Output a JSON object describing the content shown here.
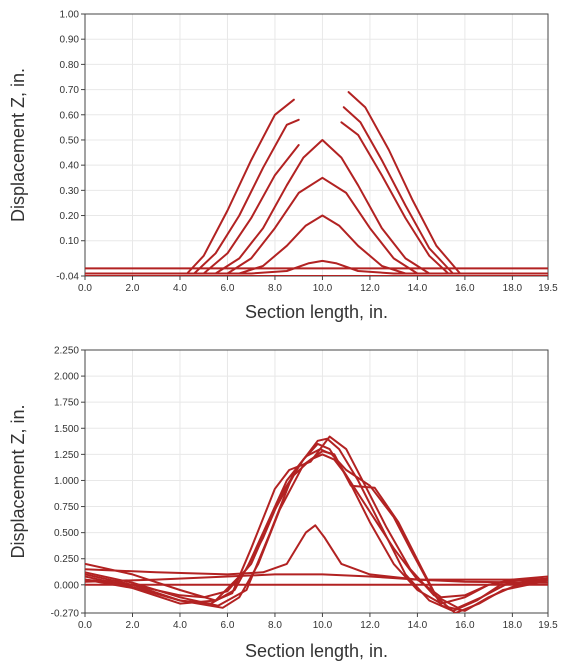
{
  "colors": {
    "series": "#b22222",
    "axis": "#444444",
    "grid": "#e8e8e8",
    "text": "#333333"
  },
  "chart_data": [
    {
      "type": "line",
      "xlabel": "Section length, in.",
      "ylabel": "Displacement Z, in.",
      "xlim": [
        0,
        19.5
      ],
      "ylim": [
        -0.04,
        1.0
      ],
      "xticks": [
        "0.0",
        "2.0",
        "4.0",
        "6.0",
        "8.0",
        "10.0",
        "12.0",
        "14.0",
        "16.0",
        "18.0",
        "19.5"
      ],
      "yticks": [
        "-0.04",
        "0.10",
        "0.20",
        "0.30",
        "0.40",
        "0.50",
        "0.60",
        "0.70",
        "0.80",
        "0.90",
        "1.00"
      ],
      "ytick_values": [
        -0.04,
        0.1,
        0.2,
        0.3,
        0.4,
        0.5,
        0.6,
        0.7,
        0.8,
        0.9,
        1.0
      ],
      "grid": true,
      "series": [
        {
          "x": [
            0,
            19.5
          ],
          "y": [
            -0.04,
            -0.04
          ]
        },
        {
          "x": [
            0,
            19.5
          ],
          "y": [
            -0.01,
            -0.01
          ]
        },
        {
          "x": [
            0,
            7,
            8.5,
            9.4,
            10,
            10.6,
            11.5,
            13,
            19.5
          ],
          "y": [
            -0.03,
            -0.03,
            -0.02,
            0.01,
            0.02,
            0.01,
            -0.02,
            -0.03,
            -0.03
          ]
        },
        {
          "x": [
            0,
            6.5,
            7.5,
            8.5,
            9.3,
            10,
            10.7,
            11.5,
            12.5,
            13.5,
            19.5
          ],
          "y": [
            -0.03,
            -0.03,
            0,
            0.08,
            0.16,
            0.2,
            0.16,
            0.08,
            0,
            -0.03,
            -0.03
          ]
        },
        {
          "x": [
            0,
            6,
            7,
            8,
            9,
            10,
            11,
            12,
            13,
            14,
            19.5
          ],
          "y": [
            -0.03,
            -0.03,
            0.03,
            0.15,
            0.29,
            0.35,
            0.29,
            0.15,
            0.03,
            -0.03,
            -0.03
          ]
        },
        {
          "x": [
            0,
            5.5,
            6.5,
            7.5,
            8.5,
            9.2,
            10,
            10.8,
            11.5,
            12.5,
            13.5,
            14.5,
            19.5
          ],
          "y": [
            -0.03,
            -0.03,
            0.03,
            0.15,
            0.32,
            0.43,
            0.5,
            0.43,
            0.32,
            0.15,
            0.03,
            -0.03,
            -0.03
          ]
        },
        {
          "x": [
            0,
            5,
            6,
            7,
            8,
            9.0
          ],
          "y": [
            -0.03,
            -0.03,
            0.05,
            0.19,
            0.36,
            0.48
          ]
        },
        {
          "x": [
            0,
            4.6,
            5.5,
            6.5,
            7.5,
            8.5,
            9.0
          ],
          "y": [
            -0.03,
            -0.03,
            0.05,
            0.2,
            0.39,
            0.56,
            0.58
          ]
        },
        {
          "x": [
            0,
            4.3,
            5,
            6,
            7,
            8,
            8.8
          ],
          "y": [
            -0.03,
            -0.03,
            0.04,
            0.22,
            0.42,
            0.6,
            0.66
          ]
        },
        {
          "x": [
            10.8,
            11.5,
            12.5,
            13.5,
            14.5,
            15.3,
            19.5
          ],
          "y": [
            0.57,
            0.52,
            0.36,
            0.19,
            0.04,
            -0.03,
            -0.03
          ]
        },
        {
          "x": [
            10.9,
            11.6,
            12.5,
            13.5,
            14.5,
            15.5,
            19.5
          ],
          "y": [
            0.63,
            0.57,
            0.42,
            0.24,
            0.07,
            -0.03,
            -0.03
          ]
        },
        {
          "x": [
            11.1,
            11.8,
            12.8,
            13.8,
            14.8,
            15.8,
            19.5
          ],
          "y": [
            0.69,
            0.63,
            0.46,
            0.26,
            0.08,
            -0.03,
            -0.03
          ]
        }
      ]
    },
    {
      "type": "line",
      "xlabel": "Section length, in.",
      "ylabel": "Displacement Z, in.",
      "xlim": [
        0,
        19.5
      ],
      "ylim": [
        -0.27,
        2.25
      ],
      "xticks": [
        "0.0",
        "2.0",
        "4.0",
        "6.0",
        "8.0",
        "10.0",
        "12.0",
        "14.0",
        "16.0",
        "18.0",
        "19.5"
      ],
      "yticks": [
        "-0.270",
        "0.000",
        "0.250",
        "0.500",
        "0.750",
        "1.000",
        "1.250",
        "1.500",
        "1.750",
        "2.000",
        "2.250"
      ],
      "ytick_values": [
        -0.27,
        0,
        0.25,
        0.5,
        0.75,
        1.0,
        1.25,
        1.5,
        1.75,
        2.0,
        2.25
      ],
      "grid": true,
      "series": [
        {
          "x": [
            0,
            19.5
          ],
          "y": [
            0.0,
            0.0
          ]
        },
        {
          "x": [
            0,
            3,
            6,
            8,
            10,
            12,
            14,
            16,
            19.5
          ],
          "y": [
            0.03,
            0.05,
            0.08,
            0.1,
            0.1,
            0.08,
            0.05,
            0.03,
            0.02
          ]
        },
        {
          "x": [
            0,
            3,
            6,
            7.5,
            8.5,
            9.3,
            9.7,
            10.1,
            10.8,
            12,
            14,
            16,
            19.5
          ],
          "y": [
            0.15,
            0.12,
            0.1,
            0.12,
            0.2,
            0.5,
            0.57,
            0.45,
            0.2,
            0.1,
            0.05,
            0.05,
            0.05
          ]
        },
        {
          "x": [
            0,
            2,
            4,
            5,
            6,
            7,
            8,
            8.8,
            9.5,
            10,
            10.5,
            11,
            12,
            13,
            14,
            15,
            16,
            17,
            18,
            19.5
          ],
          "y": [
            0.05,
            0.0,
            -0.1,
            -0.12,
            -0.06,
            0.2,
            0.72,
            1.05,
            1.2,
            1.25,
            1.2,
            1.05,
            0.7,
            0.35,
            0.05,
            -0.12,
            -0.1,
            0.0,
            0.04,
            0.06
          ]
        },
        {
          "x": [
            0,
            2,
            4,
            5.3,
            6.3,
            7.5,
            8.3,
            9.2,
            9.8,
            10.3,
            11,
            12,
            13,
            14,
            15,
            16,
            17,
            18,
            19.5
          ],
          "y": [
            0.1,
            0.0,
            -0.15,
            -0.18,
            -0.05,
            0.45,
            0.88,
            1.2,
            1.35,
            1.3,
            1.05,
            0.6,
            0.2,
            -0.05,
            -0.18,
            -0.12,
            0.0,
            0.05,
            0.08
          ]
        },
        {
          "x": [
            0,
            2,
            4,
            5.6,
            6.8,
            7.8,
            8.8,
            9.8,
            10.2,
            10.7,
            11.5,
            12.5,
            13.5,
            14.5,
            15.5,
            16.5,
            17.5,
            19.5
          ],
          "y": [
            0.12,
            0.02,
            -0.12,
            -0.2,
            -0.05,
            0.5,
            1.08,
            1.38,
            1.4,
            1.3,
            1.0,
            0.55,
            0.1,
            -0.15,
            -0.25,
            -0.15,
            0.0,
            0.06
          ]
        },
        {
          "x": [
            0,
            2,
            4,
            5.5,
            6.2,
            7,
            8,
            8.6,
            9.5,
            10.3,
            11,
            11.8,
            12.7,
            13.7,
            14.7,
            15.7,
            16.7,
            17.7,
            19.5
          ],
          "y": [
            0.2,
            0.1,
            -0.05,
            -0.15,
            -0.08,
            0.35,
            0.92,
            1.1,
            1.18,
            1.42,
            1.3,
            0.95,
            0.55,
            0.15,
            -0.1,
            -0.22,
            -0.12,
            0.0,
            0.05
          ]
        },
        {
          "x": [
            0,
            2,
            4,
            5.8,
            6.5,
            7.3,
            8.2,
            9.2,
            10.0,
            10.5,
            11.2,
            12.2,
            13.2,
            14.2,
            15,
            16,
            17,
            18,
            19.5
          ],
          "y": [
            0.08,
            -0.02,
            -0.15,
            -0.22,
            -0.12,
            0.2,
            0.72,
            1.15,
            1.28,
            1.25,
            0.95,
            0.93,
            0.6,
            0.15,
            -0.2,
            -0.25,
            -0.12,
            -0.02,
            0.06
          ]
        },
        {
          "x": [
            0,
            2,
            4,
            5.5,
            6.8,
            7.6,
            8.5,
            9.3,
            9.9,
            10.4,
            11,
            12,
            13,
            13.8,
            14.8,
            15.6,
            16.6,
            17.6,
            19.5
          ],
          "y": [
            0.05,
            -0.03,
            -0.18,
            -0.15,
            0.15,
            0.55,
            1.0,
            1.23,
            1.3,
            1.25,
            1.1,
            0.95,
            0.65,
            0.3,
            -0.12,
            -0.27,
            -0.18,
            -0.05,
            0.04
          ]
        }
      ]
    }
  ]
}
